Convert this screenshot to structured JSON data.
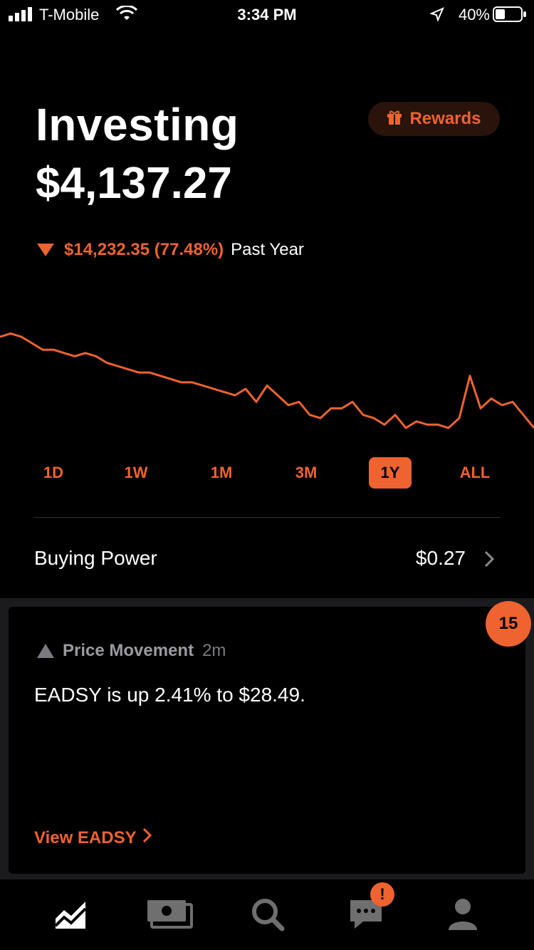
{
  "status_bar": {
    "carrier": "T-Mobile",
    "time": "3:34 PM",
    "battery": "40%"
  },
  "header": {
    "title": "Investing",
    "value": "$4,137.27",
    "rewards_label": "Rewards"
  },
  "change": {
    "amount": "$14,232.35 (77.48%)",
    "period": "Past Year"
  },
  "ranges": [
    "1D",
    "1W",
    "1M",
    "3M",
    "1Y",
    "ALL"
  ],
  "active_range": "1Y",
  "buying_power": {
    "label": "Buying Power",
    "amount": "$0.27"
  },
  "card": {
    "badge_count": "15",
    "category": "Price Movement",
    "ago": "2m",
    "message": "EADSY is up 2.41% to $28.49.",
    "link_label": "View EADSY"
  },
  "nav": {
    "items": [
      "investing",
      "banking",
      "search",
      "messages",
      "account"
    ],
    "messages_badge": "!"
  },
  "colors": {
    "accent": "#ee6330",
    "background": "#000000",
    "muted": "#7a7a80"
  },
  "chart_data": {
    "type": "line",
    "x": [
      0,
      1,
      2,
      3,
      4,
      5,
      6,
      7,
      8,
      9,
      10,
      11,
      12,
      13,
      14,
      15,
      16,
      17,
      18,
      19,
      20,
      21,
      22,
      23,
      24,
      25,
      26,
      27,
      28,
      29,
      30,
      31,
      32,
      33,
      34,
      35,
      36,
      37,
      38,
      39,
      40,
      41,
      42,
      43,
      44,
      45,
      46,
      47,
      48,
      49,
      50
    ],
    "values": [
      30,
      31,
      30,
      28,
      26,
      26,
      25,
      24,
      25,
      24,
      22,
      21,
      20,
      19,
      19,
      18,
      17,
      16,
      16,
      15,
      14,
      13,
      12,
      14,
      10,
      15,
      12,
      9,
      10,
      6,
      5,
      8,
      8,
      10,
      6,
      5,
      3,
      6,
      2,
      4,
      3,
      3,
      2,
      5,
      18,
      8,
      11,
      9,
      10,
      6,
      2
    ],
    "ylim": [
      0,
      35
    ],
    "grid": false
  }
}
